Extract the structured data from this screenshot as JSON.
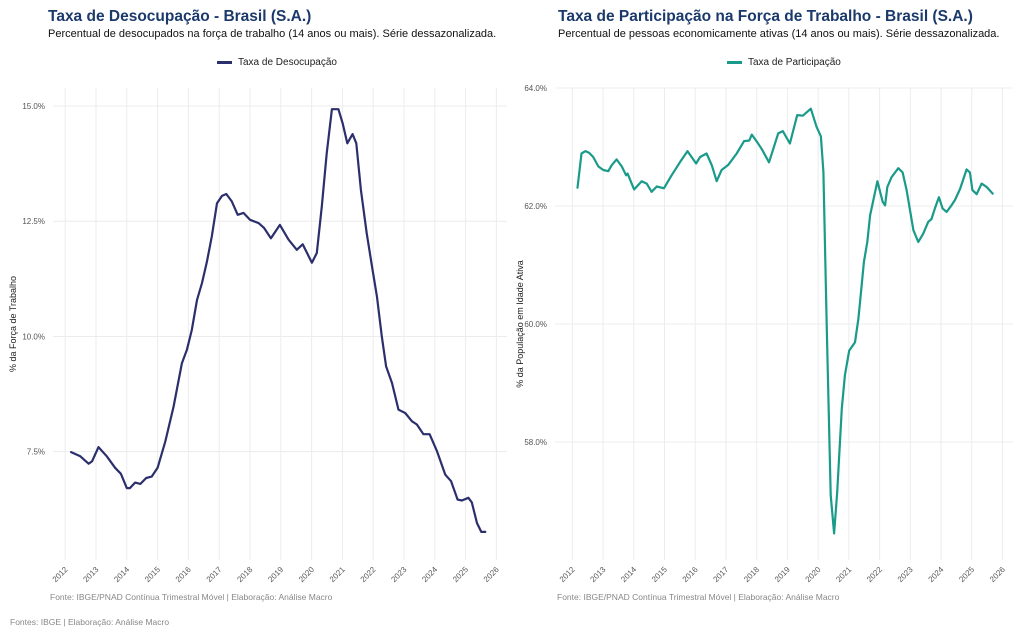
{
  "colors": {
    "title": "#1b3a6b",
    "grid": "#ececec",
    "tick_text": "#555555"
  },
  "footer_caption": "Fontes: IBGE | Elaboração: Análise Macro",
  "chart_data": [
    {
      "type": "line",
      "title": "Taxa de Desocupação - Brasil (S.A.)",
      "subtitle": "Percentual de desocupados na força de trabalho (14 anos ou mais). Série dessazonalizada.",
      "caption": "Fonte: IBGE/PNAD Contínua Trimestral Móvel | Elaboração: Análise Macro",
      "ylabel": "% da Força de Trabalho",
      "xlabel": "",
      "legend_position": "top",
      "grid": true,
      "xlim": [
        2011.85,
        2026.2
      ],
      "ylim": [
        5.15,
        15.39
      ],
      "x_ticks": [
        "2012",
        "2013",
        "2014",
        "2015",
        "2016",
        "2017",
        "2018",
        "2019",
        "2020",
        "2021",
        "2022",
        "2023",
        "2024",
        "2025",
        "2026"
      ],
      "y_ticks": [
        {
          "value": 7.5,
          "label": "7.5%"
        },
        {
          "value": 10,
          "label": "10.0%"
        },
        {
          "value": 12.5,
          "label": "12.5%"
        },
        {
          "value": 15,
          "label": "15.0%"
        }
      ],
      "series": [
        {
          "name": "Taxa de Desocupação",
          "color": "#2b2f6b",
          "x": [
            2012.19,
            2012.49,
            2012.76,
            2012.87,
            2013.08,
            2013.35,
            2013.62,
            2013.81,
            2014.0,
            2014.1,
            2014.27,
            2014.44,
            2014.63,
            2014.81,
            2015.0,
            2015.25,
            2015.52,
            2015.79,
            2015.95,
            2016.11,
            2016.28,
            2016.44,
            2016.6,
            2016.76,
            2016.93,
            2017.09,
            2017.23,
            2017.41,
            2017.6,
            2017.79,
            2018.0,
            2018.28,
            2018.46,
            2018.68,
            2018.97,
            2019.25,
            2019.52,
            2019.71,
            2020.01,
            2020.17,
            2020.33,
            2020.49,
            2020.66,
            2020.87,
            2021.01,
            2021.16,
            2021.33,
            2021.45,
            2021.6,
            2021.79,
            2021.96,
            2022.12,
            2022.28,
            2022.42,
            2022.61,
            2022.82,
            2023.04,
            2023.26,
            2023.42,
            2023.63,
            2023.83,
            2024.07,
            2024.34,
            2024.53,
            2024.74,
            2024.88,
            2025.09,
            2025.2,
            2025.37,
            2025.51,
            2025.64
          ],
          "y": [
            7.49,
            7.4,
            7.24,
            7.29,
            7.6,
            7.4,
            7.15,
            7.02,
            6.71,
            6.71,
            6.83,
            6.8,
            6.93,
            6.96,
            7.15,
            7.72,
            8.48,
            9.42,
            9.71,
            10.14,
            10.79,
            11.16,
            11.62,
            12.17,
            12.89,
            13.05,
            13.09,
            12.93,
            12.64,
            12.68,
            12.53,
            12.46,
            12.35,
            12.13,
            12.42,
            12.1,
            11.88,
            12.0,
            11.6,
            11.81,
            12.82,
            13.97,
            14.93,
            14.93,
            14.62,
            14.19,
            14.39,
            14.19,
            13.18,
            12.24,
            11.52,
            10.87,
            10.0,
            9.35,
            8.99,
            8.41,
            8.34,
            8.16,
            8.09,
            7.88,
            7.88,
            7.51,
            7.0,
            6.86,
            6.46,
            6.44,
            6.5,
            6.4,
            5.95,
            5.76,
            5.76
          ]
        }
      ]
    },
    {
      "type": "line",
      "title": "Taxa de Participação na Força de Trabalho - Brasil (S.A.)",
      "subtitle": "Percentual de pessoas economicamente ativas (14 anos ou mais). Série dessazonalizada.",
      "caption": "Fonte: IBGE/PNAD Contínua Trimestral Móvel | Elaboração: Análise Macro",
      "ylabel": "% da População em Idade Ativa",
      "xlabel": "",
      "legend_position": "top",
      "grid": true,
      "xlim": [
        2011.85,
        2026.3
      ],
      "ylim": [
        56.0,
        64.0
      ],
      "x_ticks": [
        "2012",
        "2013",
        "2014",
        "2015",
        "2016",
        "2017",
        "2018",
        "2019",
        "2020",
        "2021",
        "2022",
        "2023",
        "2024",
        "2025",
        "2026"
      ],
      "y_ticks": [
        {
          "value": 58,
          "label": "58.0%"
        },
        {
          "value": 60,
          "label": "60.0%"
        },
        {
          "value": 62,
          "label": "62.0%"
        },
        {
          "value": 64,
          "label": "64.0%"
        }
      ],
      "series": [
        {
          "name": "Taxa de Participação",
          "color": "#1a9a8a",
          "x": [
            2012.17,
            2012.3,
            2012.43,
            2012.55,
            2012.68,
            2012.85,
            2013.01,
            2013.17,
            2013.28,
            2013.44,
            2013.61,
            2013.75,
            2013.8,
            2014.01,
            2014.26,
            2014.42,
            2014.58,
            2014.75,
            2014.98,
            2015.23,
            2015.5,
            2015.75,
            2016.03,
            2016.16,
            2016.37,
            2016.54,
            2016.7,
            2016.86,
            2017.08,
            2017.35,
            2017.59,
            2017.76,
            2017.84,
            2018.02,
            2018.16,
            2018.4,
            2018.7,
            2018.85,
            2019.08,
            2019.32,
            2019.5,
            2019.76,
            2019.95,
            2020.09,
            2020.17,
            2020.28,
            2020.41,
            2020.52,
            2020.62,
            2020.77,
            2020.87,
            2021.01,
            2021.2,
            2021.31,
            2021.49,
            2021.6,
            2021.69,
            2021.93,
            2022.1,
            2022.18,
            2022.25,
            2022.39,
            2022.61,
            2022.75,
            2022.88,
            2023.1,
            2023.26,
            2023.42,
            2023.58,
            2023.69,
            2023.8,
            2023.93,
            2024.05,
            2024.18,
            2024.31,
            2024.45,
            2024.62,
            2024.83,
            2024.94,
            2025.02,
            2025.16,
            2025.32,
            2025.49,
            2025.68
          ],
          "y": [
            62.31,
            62.89,
            62.93,
            62.9,
            62.83,
            62.67,
            62.61,
            62.59,
            62.69,
            62.79,
            62.67,
            62.52,
            62.55,
            62.28,
            62.42,
            62.38,
            62.24,
            62.33,
            62.3,
            62.52,
            62.74,
            62.93,
            62.72,
            62.83,
            62.89,
            62.69,
            62.42,
            62.61,
            62.7,
            62.89,
            63.1,
            63.11,
            63.21,
            63.08,
            62.97,
            62.74,
            63.23,
            63.27,
            63.06,
            63.54,
            63.53,
            63.65,
            63.34,
            63.18,
            62.58,
            59.98,
            57.1,
            56.45,
            57.15,
            58.57,
            59.13,
            59.55,
            59.69,
            60.09,
            61.05,
            61.39,
            61.84,
            62.42,
            62.07,
            62.01,
            62.32,
            62.49,
            62.64,
            62.57,
            62.27,
            61.59,
            61.39,
            61.53,
            61.73,
            61.78,
            61.96,
            62.15,
            61.96,
            61.9,
            61.99,
            62.1,
            62.29,
            62.62,
            62.57,
            62.27,
            62.2,
            62.38,
            62.32,
            62.21
          ]
        }
      ]
    }
  ]
}
